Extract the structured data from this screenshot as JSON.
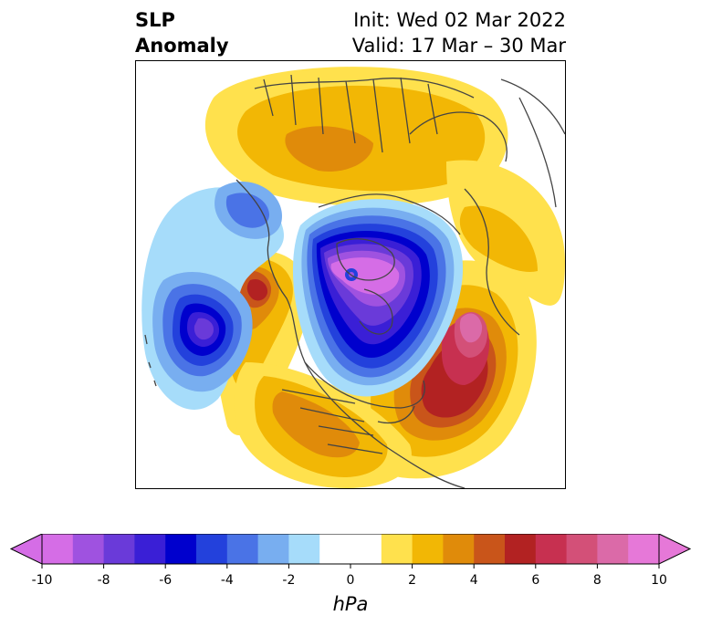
{
  "title": {
    "left_line1": "SLP",
    "left_line2": "Anomaly",
    "right_line1": "Init: Wed 02 Mar 2022",
    "right_line2": "Valid: 17 Mar – 30 Mar"
  },
  "colorbar": {
    "unit": "hPa",
    "min": -10,
    "max": 10,
    "step": 1,
    "tick_labels": [
      "-10",
      "-8",
      "-6",
      "-4",
      "-2",
      "0",
      "2",
      "4",
      "6",
      "8",
      "10"
    ],
    "colors": [
      "#d56de6",
      "#9f52e0",
      "#6a3ad9",
      "#3a1fd6",
      "#0000cd",
      "#2341dc",
      "#4a73e6",
      "#78aef0",
      "#a6dcfa",
      "#ffffff",
      "#ffffff",
      "#ffe14d",
      "#f2b705",
      "#e08b0a",
      "#c9551a",
      "#b22222",
      "#c73050",
      "#d35078",
      "#db6aa8",
      "#e678d8"
    ],
    "extend": "both"
  },
  "map": {
    "projection": "north-polar-stereographic",
    "field": "sea level pressure anomaly",
    "features": [
      {
        "name": "arctic-low",
        "sign": "negative",
        "peak_hpa": -10
      },
      {
        "name": "north-pacific-low",
        "sign": "negative",
        "peak_hpa": -8
      },
      {
        "name": "north-atlantic-high",
        "sign": "positive",
        "peak_hpa": 9
      },
      {
        "name": "western-north-america-high",
        "sign": "positive",
        "peak_hpa": 6
      },
      {
        "name": "eurasia-high",
        "sign": "positive",
        "peak_hpa": 5
      }
    ]
  }
}
